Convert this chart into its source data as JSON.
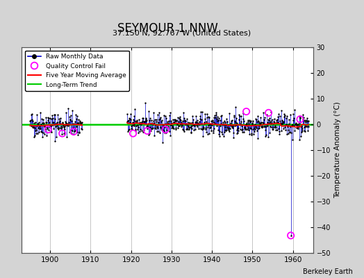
{
  "title": "SEYMOUR 1 NNW",
  "subtitle": "37.150 N, 92.767 W (United States)",
  "ylabel": "Temperature Anomaly (°C)",
  "credit": "Berkeley Earth",
  "xlim": [
    1893,
    1965
  ],
  "ylim": [
    -50,
    30
  ],
  "yticks": [
    -50,
    -40,
    -30,
    -20,
    -10,
    0,
    10,
    20,
    30
  ],
  "xticks": [
    1900,
    1910,
    1920,
    1930,
    1940,
    1950,
    1960
  ],
  "fig_bg_color": "#d4d4d4",
  "plot_bg_color": "#ffffff",
  "raw_line_color": "#0000cc",
  "dot_color": "#000000",
  "qc_color": "#ff00ff",
  "ma_color": "#ff0000",
  "trend_color": "#00cc00",
  "grid_color": "#bbbbbb",
  "seed": 42,
  "seg1_start": 1895,
  "seg1_end": 1907,
  "seg2_start": 1919,
  "seg2_end": 1963,
  "seg1_std": 2.5,
  "seg2_std": 2.2,
  "outlier_year": 1959.5,
  "outlier_val": -43.2,
  "qc_points": [
    [
      1899.5,
      -2.0
    ],
    [
      1903.0,
      -3.5
    ],
    [
      1905.8,
      -2.8
    ],
    [
      1920.5,
      -3.5
    ],
    [
      1924.0,
      -2.5
    ],
    [
      1928.5,
      -2.0
    ],
    [
      1948.5,
      5.0
    ],
    [
      1954.0,
      4.5
    ],
    [
      1961.8,
      2.0
    ],
    [
      1959.5,
      -43.2
    ]
  ]
}
